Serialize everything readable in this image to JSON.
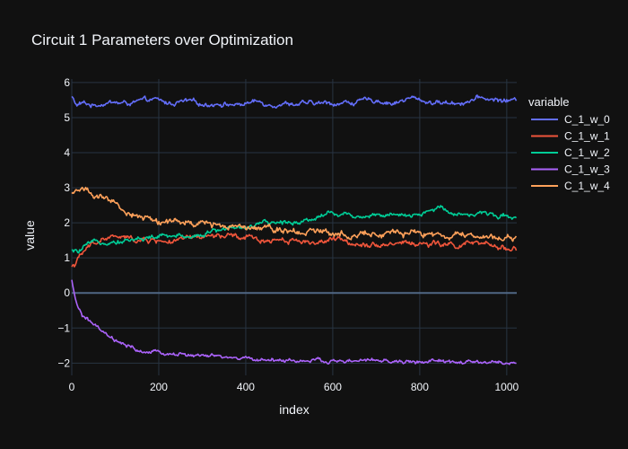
{
  "chart_data": {
    "type": "line",
    "title": "Circuit 1 Parameters over Optimization",
    "xlabel": "index",
    "ylabel": "value",
    "xlim": [
      0,
      1023
    ],
    "ylim": [
      -2.35,
      6.1
    ],
    "x_ticks": [
      0,
      200,
      400,
      600,
      800,
      1000
    ],
    "y_ticks": [
      -2,
      -1,
      0,
      1,
      2,
      3,
      4,
      5,
      6
    ],
    "y_tick_labels": [
      "−2",
      "−1",
      "0",
      "1",
      "2",
      "3",
      "4",
      "5",
      "6"
    ],
    "grid": true,
    "legend": {
      "title": "variable",
      "placement": "right"
    },
    "series": [
      {
        "name": "C_1_w_0",
        "color": "#636efa",
        "x": [
          0,
          10,
          25,
          50,
          80,
          120,
          160,
          190,
          220,
          260,
          300,
          340,
          380,
          420,
          460,
          500,
          540,
          580,
          620,
          660,
          700,
          740,
          780,
          820,
          860,
          900,
          940,
          980,
          1023
        ],
        "y": [
          5.6,
          5.35,
          5.4,
          5.35,
          5.45,
          5.4,
          5.45,
          5.5,
          5.4,
          5.45,
          5.38,
          5.42,
          5.36,
          5.45,
          5.4,
          5.42,
          5.38,
          5.4,
          5.42,
          5.45,
          5.5,
          5.42,
          5.55,
          5.45,
          5.42,
          5.45,
          5.55,
          5.5,
          5.48
        ],
        "noise": 0.05
      },
      {
        "name": "C_1_w_1",
        "color": "#ef553b",
        "x": [
          0,
          15,
          30,
          60,
          90,
          120,
          160,
          200,
          240,
          280,
          320,
          360,
          400,
          440,
          480,
          520,
          560,
          600,
          640,
          680,
          720,
          760,
          800,
          840,
          880,
          920,
          960,
          1000,
          1023
        ],
        "y": [
          0.75,
          0.95,
          1.2,
          1.5,
          1.6,
          1.55,
          1.5,
          1.5,
          1.45,
          1.55,
          1.6,
          1.6,
          1.55,
          1.5,
          1.55,
          1.5,
          1.45,
          1.5,
          1.45,
          1.42,
          1.4,
          1.45,
          1.4,
          1.38,
          1.35,
          1.4,
          1.32,
          1.3,
          1.28
        ],
        "noise": 0.06
      },
      {
        "name": "C_1_w_2",
        "color": "#00cc96",
        "x": [
          0,
          15,
          30,
          60,
          90,
          120,
          160,
          200,
          240,
          280,
          320,
          360,
          400,
          440,
          480,
          520,
          560,
          590,
          620,
          660,
          700,
          740,
          780,
          820,
          850,
          880,
          920,
          960,
          1000,
          1023
        ],
        "y": [
          1.2,
          1.15,
          1.3,
          1.45,
          1.5,
          1.5,
          1.55,
          1.6,
          1.6,
          1.65,
          1.75,
          1.85,
          1.9,
          1.95,
          2.0,
          2.05,
          2.15,
          2.3,
          2.25,
          2.2,
          2.25,
          2.2,
          2.15,
          2.3,
          2.45,
          2.3,
          2.25,
          2.25,
          2.2,
          2.2
        ],
        "noise": 0.05
      },
      {
        "name": "C_1_w_3",
        "color": "#ab63fa",
        "x": [
          0,
          5,
          12,
          25,
          40,
          55,
          70,
          90,
          110,
          130,
          160,
          200,
          250,
          300,
          350,
          400,
          450,
          500,
          550,
          600,
          650,
          700,
          750,
          800,
          850,
          900,
          950,
          1000,
          1023
        ],
        "y": [
          0.35,
          -0.05,
          -0.35,
          -0.65,
          -0.8,
          -0.95,
          -1.15,
          -1.3,
          -1.45,
          -1.55,
          -1.68,
          -1.72,
          -1.75,
          -1.8,
          -1.85,
          -1.88,
          -1.9,
          -1.92,
          -1.95,
          -1.95,
          -1.95,
          -1.93,
          -1.97,
          -1.97,
          -1.95,
          -2.0,
          -1.98,
          -2.0,
          -2.02
        ],
        "noise": 0.04
      },
      {
        "name": "C_1_w_4",
        "color": "#ffa15a",
        "x": [
          0,
          15,
          30,
          45,
          60,
          90,
          120,
          160,
          200,
          240,
          280,
          320,
          360,
          400,
          440,
          480,
          520,
          560,
          600,
          640,
          680,
          720,
          760,
          800,
          840,
          880,
          920,
          960,
          1000,
          1023
        ],
        "y": [
          2.8,
          2.95,
          3.05,
          2.85,
          2.7,
          2.55,
          2.35,
          2.15,
          2.05,
          2.0,
          1.95,
          1.95,
          1.95,
          1.95,
          1.9,
          1.85,
          1.8,
          1.75,
          1.75,
          1.7,
          1.72,
          1.7,
          1.65,
          1.68,
          1.65,
          1.62,
          1.6,
          1.6,
          1.58,
          1.55
        ],
        "noise": 0.07
      }
    ]
  }
}
